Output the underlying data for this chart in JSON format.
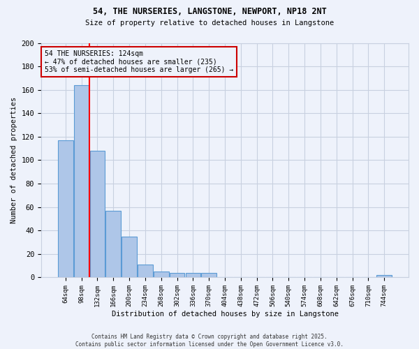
{
  "title_line1": "54, THE NURSERIES, LANGSTONE, NEWPORT, NP18 2NT",
  "title_line2": "Size of property relative to detached houses in Langstone",
  "xlabel": "Distribution of detached houses by size in Langstone",
  "ylabel": "Number of detached properties",
  "categories": [
    "64sqm",
    "98sqm",
    "132sqm",
    "166sqm",
    "200sqm",
    "234sqm",
    "268sqm",
    "302sqm",
    "336sqm",
    "370sqm",
    "404sqm",
    "438sqm",
    "472sqm",
    "506sqm",
    "540sqm",
    "574sqm",
    "608sqm",
    "642sqm",
    "676sqm",
    "710sqm",
    "744sqm"
  ],
  "values": [
    117,
    164,
    108,
    57,
    35,
    11,
    5,
    4,
    4,
    4,
    0,
    0,
    0,
    0,
    0,
    0,
    0,
    0,
    0,
    0,
    2
  ],
  "bar_color": "#aec6e8",
  "bar_edge_color": "#5b9bd5",
  "grid_color": "#c8d0e0",
  "background_color": "#eef2fb",
  "red_line_x": 1.5,
  "annotation_text": "54 THE NURSERIES: 124sqm\n← 47% of detached houses are smaller (235)\n53% of semi-detached houses are larger (265) →",
  "annotation_box_edge": "#cc0000",
  "footer_line1": "Contains HM Land Registry data © Crown copyright and database right 2025.",
  "footer_line2": "Contains public sector information licensed under the Open Government Licence v3.0.",
  "ylim": [
    0,
    200
  ],
  "yticks": [
    0,
    20,
    40,
    60,
    80,
    100,
    120,
    140,
    160,
    180,
    200
  ]
}
